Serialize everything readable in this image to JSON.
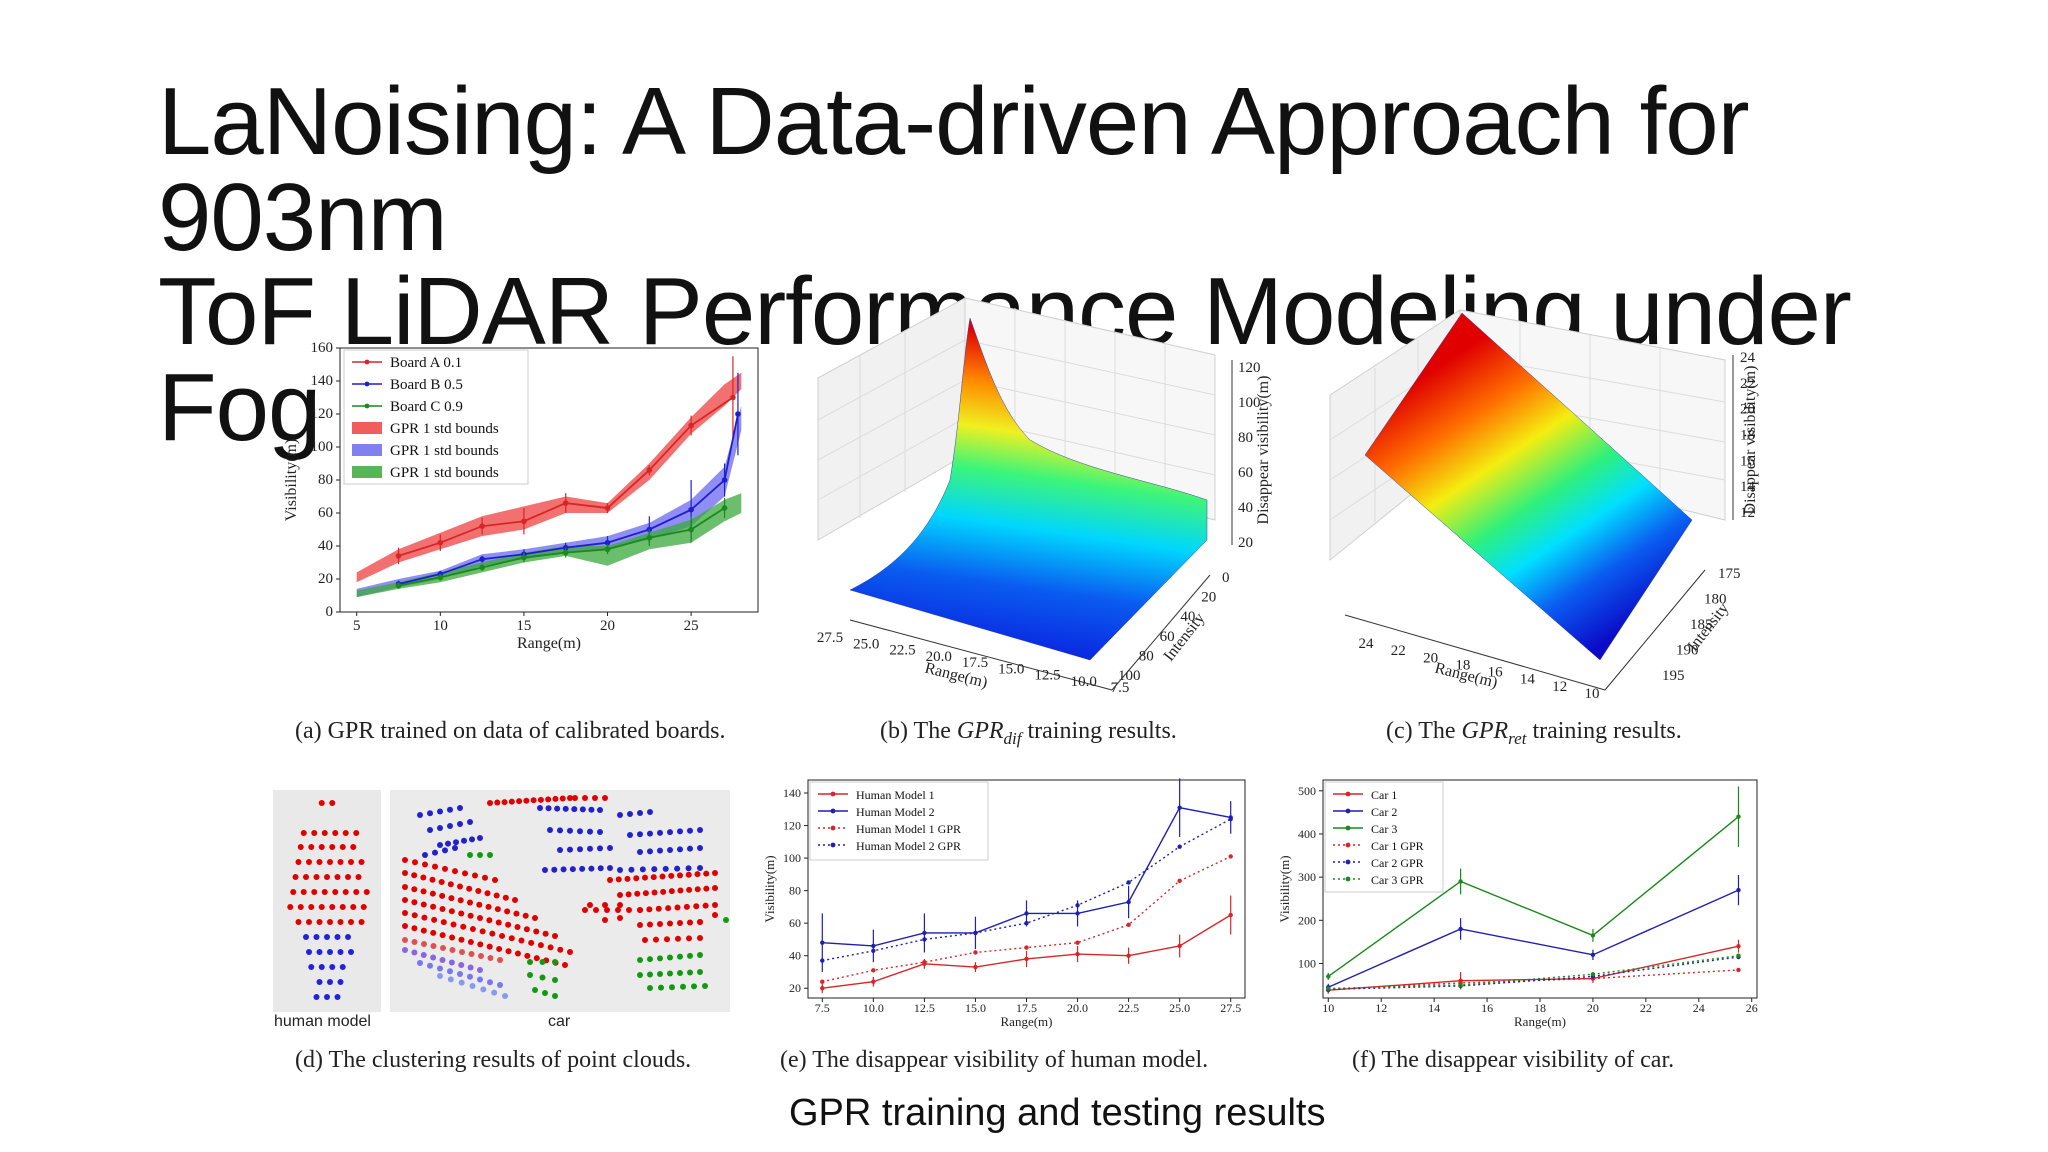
{
  "slide": {
    "title_line1": "LaNoising: A Data-driven Approach for 903nm",
    "title_line2": "ToF LiDAR Performance Modeling under Fog",
    "footer": "GPR training and testing results"
  },
  "captions": {
    "a": "(a) GPR trained on data of calibrated boards.",
    "b_pre": "(b) The ",
    "b_sym": "GPR",
    "b_sub": "dif",
    "b_post": " training results.",
    "c_pre": "(c) The ",
    "c_sym": "GPR",
    "c_sub": "ret",
    "c_post": " training results.",
    "d": "(d) The clustering results of point clouds.",
    "e": "(e) The disappear visibility of human model.",
    "f": "(f) The disappear visibility of car."
  },
  "panel_d": {
    "label_left": "human model",
    "label_right": "car"
  },
  "chart_data": [
    {
      "id": "a",
      "type": "line",
      "xlabel": "Range(m)",
      "ylabel": "Visibility(m)",
      "xlim": [
        4,
        29
      ],
      "ylim": [
        0,
        160
      ],
      "xticks": [
        5,
        10,
        15,
        20,
        25
      ],
      "yticks": [
        0,
        20,
        40,
        60,
        80,
        100,
        120,
        140,
        160
      ],
      "legend": [
        "Board A 0.1",
        "Board B 0.5",
        "Board C 0.9",
        "GPR 1 std bounds",
        "GPR 1 std bounds",
        "GPR 1 std bounds"
      ],
      "series": [
        {
          "name": "Board A 0.1",
          "color": "#d62728",
          "x": [
            7.5,
            10,
            12.5,
            15,
            17.5,
            20,
            22.5,
            25,
            27.5
          ],
          "y": [
            34,
            42,
            52,
            55,
            66,
            63,
            86,
            113,
            130
          ],
          "err": [
            5,
            5,
            5,
            8,
            6,
            3,
            3,
            6,
            25
          ]
        },
        {
          "name": "Board B 0.5",
          "color": "#1f1fd0",
          "x": [
            7.5,
            10,
            12.5,
            15,
            17.5,
            20,
            22.5,
            25,
            27,
            27.8
          ],
          "y": [
            17,
            23,
            32,
            35,
            39,
            42,
            50,
            62,
            80,
            120
          ],
          "err": [
            2,
            2,
            2,
            3,
            3,
            4,
            8,
            18,
            10,
            25
          ]
        },
        {
          "name": "Board C 0.9",
          "color": "#1a8a1a",
          "x": [
            7.5,
            10,
            12.5,
            15,
            17.5,
            20,
            22.5,
            25,
            27
          ],
          "y": [
            16,
            21,
            27,
            33,
            36,
            38,
            45,
            50,
            63
          ],
          "err": [
            2,
            2,
            2,
            3,
            3,
            3,
            5,
            8,
            6
          ]
        }
      ],
      "bands": [
        {
          "color": "#ef4040",
          "x": [
            5,
            7.5,
            10,
            12.5,
            15,
            17.5,
            20,
            22.5,
            25,
            27,
            28
          ],
          "lower": [
            18,
            30,
            38,
            46,
            50,
            60,
            60,
            80,
            108,
            125,
            135
          ],
          "upper": [
            24,
            38,
            48,
            58,
            64,
            70,
            66,
            90,
            118,
            138,
            145
          ]
        },
        {
          "color": "#6a6aef",
          "x": [
            5,
            7.5,
            10,
            12.5,
            15,
            17.5,
            20,
            22.5,
            25,
            27,
            28
          ],
          "lower": [
            9,
            15,
            20,
            28,
            32,
            36,
            38,
            44,
            52,
            70,
            110
          ],
          "upper": [
            14,
            20,
            25,
            35,
            38,
            42,
            46,
            54,
            68,
            88,
            125
          ]
        },
        {
          "color": "#3aa83a",
          "x": [
            5,
            7.5,
            10,
            12.5,
            15,
            17.5,
            20,
            22.5,
            25,
            27,
            28
          ],
          "lower": [
            9,
            14,
            18,
            24,
            30,
            34,
            28,
            38,
            42,
            55,
            60
          ],
          "upper": [
            13,
            18,
            24,
            30,
            36,
            40,
            40,
            48,
            56,
            68,
            72
          ]
        }
      ]
    },
    {
      "id": "b",
      "type": "surface",
      "xlabel": "Range(m)",
      "ylabel": "Intensity",
      "zlabel": "Disappear visibility(m)",
      "xticks": [
        "27.5",
        "25.0",
        "22.5",
        "20.0",
        "17.5",
        "15.0",
        "12.5",
        "10.0",
        "7.5"
      ],
      "yticks": [
        "0",
        "20",
        "40",
        "60",
        "80",
        "100"
      ],
      "zticks": [
        "20",
        "40",
        "60",
        "80",
        "100",
        "120"
      ]
    },
    {
      "id": "c",
      "type": "surface",
      "xlabel": "Range(m)",
      "ylabel": "Intensity",
      "zlabel": "Disappear visibility(m)",
      "xticks": [
        "24",
        "22",
        "20",
        "18",
        "16",
        "14",
        "12",
        "10"
      ],
      "yticks": [
        "175",
        "180",
        "185",
        "190",
        "195"
      ],
      "zticks": [
        "12",
        "14",
        "16",
        "18",
        "20",
        "22",
        "24"
      ]
    },
    {
      "id": "e",
      "type": "line",
      "xlabel": "Range(m)",
      "ylabel": "Visibility(m)",
      "xlim": [
        6.8,
        28.2
      ],
      "ylim": [
        14,
        148
      ],
      "xticks": [
        7.5,
        10.0,
        12.5,
        15.0,
        17.5,
        20.0,
        22.5,
        25.0,
        27.5
      ],
      "yticks": [
        20,
        40,
        60,
        80,
        100,
        120,
        140
      ],
      "series": [
        {
          "name": "Human Model 1",
          "color": "#d62728",
          "dash": false,
          "x": [
            7.5,
            10,
            12.5,
            15,
            17.5,
            20,
            22.5,
            25,
            27.5
          ],
          "y": [
            20,
            24,
            35,
            33,
            38,
            41,
            40,
            46,
            65
          ],
          "err": [
            3,
            3,
            3,
            3,
            5,
            5,
            5,
            7,
            12
          ]
        },
        {
          "name": "Human Model 2",
          "color": "#1f1fb0",
          "dash": false,
          "x": [
            7.5,
            10,
            12.5,
            15,
            17.5,
            20,
            22.5,
            25,
            27.5
          ],
          "y": [
            48,
            46,
            54,
            54,
            66,
            66,
            73,
            131,
            125
          ],
          "err": [
            18,
            10,
            12,
            10,
            8,
            8,
            10,
            18,
            10
          ]
        },
        {
          "name": "Human Model 1 GPR",
          "color": "#d62728",
          "dash": true,
          "x": [
            7.5,
            10,
            12.5,
            15,
            17.5,
            20,
            22.5,
            25,
            27.5
          ],
          "y": [
            24,
            31,
            36,
            42,
            45,
            48,
            59,
            86,
            101
          ]
        },
        {
          "name": "Human Model 2 GPR",
          "color": "#1f1fb0",
          "dash": true,
          "x": [
            7.5,
            10,
            12.5,
            15,
            17.5,
            20,
            22.5,
            25,
            27.5
          ],
          "y": [
            37,
            43,
            50,
            54,
            60,
            71,
            85,
            107,
            124
          ]
        }
      ]
    },
    {
      "id": "f",
      "type": "line",
      "xlabel": "Range(m)",
      "ylabel": "Visibility(m)",
      "xlim": [
        9.8,
        26.2
      ],
      "ylim": [
        20,
        525
      ],
      "xticks": [
        10,
        12,
        14,
        16,
        18,
        20,
        22,
        24,
        26
      ],
      "yticks": [
        100,
        200,
        300,
        400,
        500
      ],
      "series": [
        {
          "name": "Car 1",
          "color": "#d62728",
          "dash": false,
          "x": [
            10,
            15,
            20,
            25.5
          ],
          "y": [
            38,
            60,
            65,
            140
          ],
          "err": [
            8,
            20,
            10,
            15
          ]
        },
        {
          "name": "Car 2",
          "color": "#1f1fb0",
          "dash": false,
          "x": [
            10,
            15,
            20,
            25.5
          ],
          "y": [
            45,
            180,
            120,
            270
          ],
          "err": [
            8,
            25,
            12,
            35
          ]
        },
        {
          "name": "Car 3",
          "color": "#1a8a1a",
          "dash": false,
          "x": [
            10,
            15,
            20,
            25.5
          ],
          "y": [
            70,
            290,
            165,
            440
          ],
          "err": [
            8,
            30,
            15,
            70
          ]
        },
        {
          "name": "Car 1 GPR",
          "color": "#d62728",
          "dash": true,
          "x": [
            10,
            15,
            20,
            25.5
          ],
          "y": [
            40,
            55,
            65,
            85
          ]
        },
        {
          "name": "Car 2 GPR",
          "color": "#1f1fb0",
          "dash": true,
          "x": [
            10,
            15,
            20,
            25.5
          ],
          "y": [
            40,
            48,
            70,
            115
          ]
        },
        {
          "name": "Car 3 GPR",
          "color": "#1a8a1a",
          "dash": true,
          "x": [
            10,
            15,
            20,
            25.5
          ],
          "y": [
            42,
            50,
            75,
            118
          ]
        }
      ]
    }
  ]
}
